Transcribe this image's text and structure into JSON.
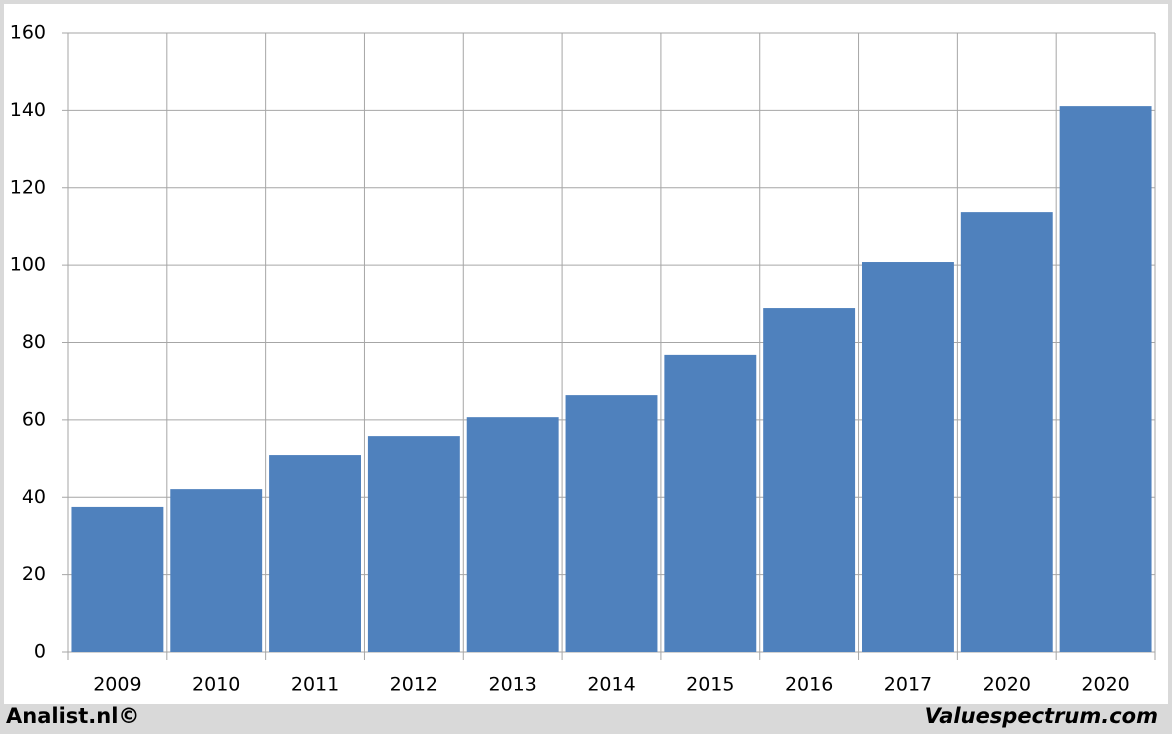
{
  "chart_data": {
    "type": "bar",
    "categories": [
      "2009",
      "2010",
      "2011",
      "2012",
      "2013",
      "2014",
      "2015",
      "2016",
      "2017",
      "2020",
      "2020"
    ],
    "values": [
      37.5,
      42.1,
      50.9,
      55.8,
      60.7,
      66.4,
      76.8,
      88.9,
      100.8,
      113.7,
      141.1
    ],
    "color": "#4f81bd",
    "ylim": [
      0,
      160
    ],
    "yticks": [
      0,
      20,
      40,
      60,
      80,
      100,
      120,
      140,
      160
    ],
    "grid": true
  },
  "footer": {
    "left": "Analist.nl©",
    "right": "Valuespectrum.com"
  }
}
